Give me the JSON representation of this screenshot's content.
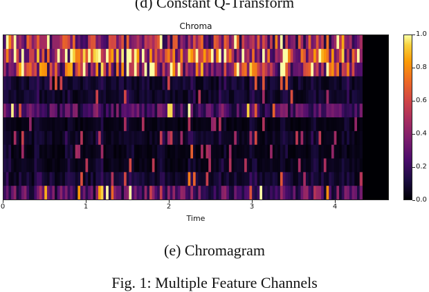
{
  "previous_caption": "(d) Constant Q-Transform",
  "chart_data": {
    "type": "heatmap",
    "title": "Chroma",
    "xlabel": "Time",
    "x_ticks": [
      "0",
      "1",
      "2",
      "3",
      "4"
    ],
    "xlim": [
      0,
      4.65
    ],
    "data_end_time": 4.32,
    "colormap": "magma",
    "colorbar_ticks": [
      "0.0",
      "0.2",
      "0.4",
      "0.6",
      "0.8",
      "1.0"
    ],
    "colorbar_range": [
      0,
      1
    ],
    "bins": 12,
    "bin_profile": [
      0.45,
      0.2,
      0.12,
      0.1,
      0.15,
      0.1,
      0.42,
      0.18,
      0.2,
      0.7,
      0.85,
      0.65
    ]
  },
  "subcaption": "(e) Chromagram",
  "figure_caption": "Fig. 1: Multiple Feature Channels"
}
